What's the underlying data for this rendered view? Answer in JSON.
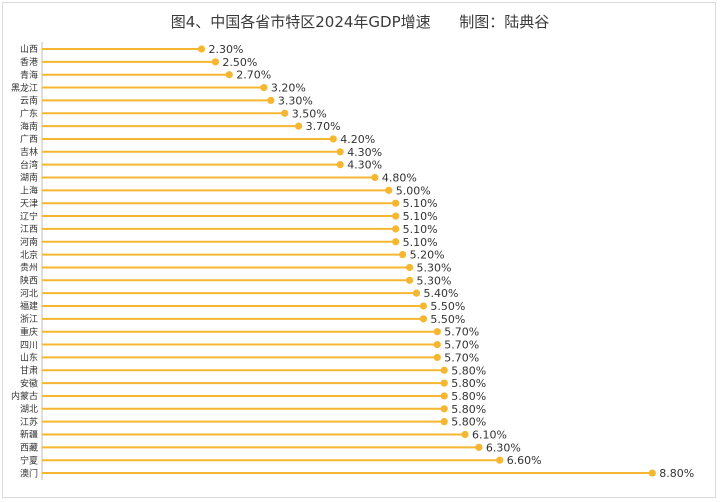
{
  "chart_data": {
    "type": "lollipop-bar",
    "orientation": "horizontal",
    "title": "图4、中国各省市特区2024年GDP增速      制图：陆典谷",
    "xlabel": "",
    "ylabel": "",
    "xlim": [
      0,
      9.2
    ],
    "grid": false,
    "legend": "none",
    "value_suffix": "%",
    "categories": [
      "山西",
      "香港",
      "青海",
      "黑龙江",
      "云南",
      "广东",
      "海南",
      "广西",
      "吉林",
      "台湾",
      "湖南",
      "上海",
      "天津",
      "辽宁",
      "江西",
      "河南",
      "北京",
      "贵州",
      "陕西",
      "河北",
      "福建",
      "浙江",
      "重庆",
      "四川",
      "山东",
      "甘肃",
      "安徽",
      "内蒙古",
      "湖北",
      "江苏",
      "新疆",
      "西藏",
      "宁夏",
      "澳门"
    ],
    "values": [
      2.3,
      2.5,
      2.7,
      3.2,
      3.3,
      3.5,
      3.7,
      4.2,
      4.3,
      4.3,
      4.8,
      5.0,
      5.1,
      5.1,
      5.1,
      5.1,
      5.2,
      5.3,
      5.3,
      5.4,
      5.5,
      5.5,
      5.7,
      5.7,
      5.7,
      5.8,
      5.8,
      5.8,
      5.8,
      5.8,
      6.1,
      6.3,
      6.6,
      8.8
    ],
    "labels": [
      "2.30%",
      "2.50%",
      "2.70%",
      "3.20%",
      "3.30%",
      "3.50%",
      "3.70%",
      "4.20%",
      "4.30%",
      "4.30%",
      "4.80%",
      "5.00%",
      "5.10%",
      "5.10%",
      "5.10%",
      "5.10%",
      "5.20%",
      "5.30%",
      "5.30%",
      "5.40%",
      "5.50%",
      "5.50%",
      "5.70%",
      "5.70%",
      "5.70%",
      "5.80%",
      "5.80%",
      "5.80%",
      "5.80%",
      "5.80%",
      "6.10%",
      "6.30%",
      "6.60%",
      "8.80%"
    ],
    "colors": {
      "bar": "#f5b731",
      "axis": "#bfbfbf",
      "text": "#333333"
    }
  }
}
